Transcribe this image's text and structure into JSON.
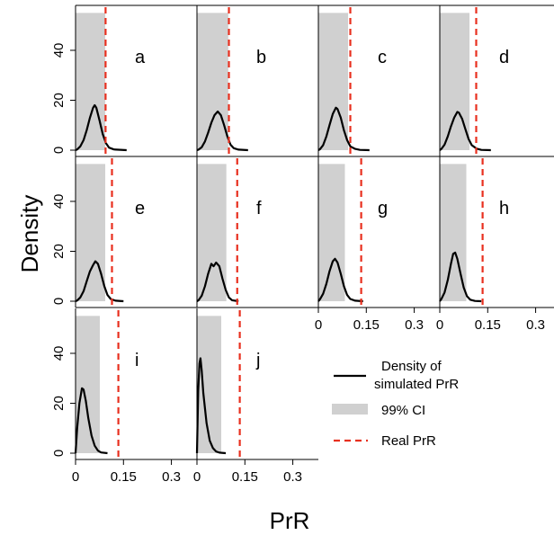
{
  "chart_data": {
    "type": "area",
    "layout": "small multiples, 4 columns",
    "ylabel": "Density",
    "xlabel": "PrR",
    "xlim": [
      0,
      0.38
    ],
    "ylim": [
      0,
      58
    ],
    "xticks": [
      0,
      0.15,
      0.3
    ],
    "xtick_labels": [
      "0",
      "0.15",
      "0.3"
    ],
    "yticks": [
      0,
      20,
      40
    ],
    "ytick_labels": [
      "0",
      "20",
      "40"
    ],
    "colors": {
      "density": "#000000",
      "ci": "#d0d0d0",
      "real": "#e8301f"
    },
    "legend": {
      "placement": "bottom-right",
      "items": [
        {
          "label_lines": [
            "Density of",
            "simulated PrR"
          ],
          "kind": "line",
          "color": "#000000"
        },
        {
          "label_lines": [
            "99% CI"
          ],
          "kind": "band",
          "color": "#d0d0d0"
        },
        {
          "label_lines": [
            "Real PrR"
          ],
          "kind": "dashed",
          "color": "#e8301f"
        }
      ]
    },
    "panels": [
      {
        "label": "a",
        "ci": [
          0,
          0.093
        ],
        "real": 0.094,
        "density": [
          [
            0.0,
            0.0
          ],
          [
            0.005,
            0.3
          ],
          [
            0.015,
            1.5
          ],
          [
            0.025,
            4.0
          ],
          [
            0.035,
            8.0
          ],
          [
            0.045,
            13.0
          ],
          [
            0.055,
            17.0
          ],
          [
            0.06,
            18.0
          ],
          [
            0.065,
            17.0
          ],
          [
            0.075,
            12.0
          ],
          [
            0.085,
            6.5
          ],
          [
            0.095,
            2.8
          ],
          [
            0.105,
            1.0
          ],
          [
            0.12,
            0.3
          ],
          [
            0.16,
            0.0
          ]
        ]
      },
      {
        "label": "b",
        "ci": [
          0,
          0.098
        ],
        "real": 0.1,
        "density": [
          [
            0.0,
            0.0
          ],
          [
            0.005,
            0.2
          ],
          [
            0.015,
            1.2
          ],
          [
            0.025,
            3.5
          ],
          [
            0.035,
            7.0
          ],
          [
            0.045,
            11.0
          ],
          [
            0.055,
            14.0
          ],
          [
            0.065,
            15.5
          ],
          [
            0.075,
            14.0
          ],
          [
            0.085,
            10.0
          ],
          [
            0.095,
            5.5
          ],
          [
            0.105,
            2.2
          ],
          [
            0.115,
            0.8
          ],
          [
            0.13,
            0.2
          ],
          [
            0.16,
            0.0
          ]
        ]
      },
      {
        "label": "c",
        "ci": [
          0,
          0.093
        ],
        "real": 0.1,
        "density": [
          [
            0.0,
            0.0
          ],
          [
            0.005,
            0.4
          ],
          [
            0.015,
            2.0
          ],
          [
            0.025,
            5.5
          ],
          [
            0.035,
            10.0
          ],
          [
            0.045,
            14.5
          ],
          [
            0.055,
            17.0
          ],
          [
            0.06,
            16.5
          ],
          [
            0.07,
            13.0
          ],
          [
            0.08,
            8.0
          ],
          [
            0.09,
            4.0
          ],
          [
            0.1,
            1.5
          ],
          [
            0.115,
            0.5
          ],
          [
            0.13,
            0.1
          ],
          [
            0.16,
            0.0
          ]
        ]
      },
      {
        "label": "d",
        "ci": [
          0,
          0.093
        ],
        "real": 0.114,
        "density": [
          [
            0.0,
            0.0
          ],
          [
            0.005,
            0.5
          ],
          [
            0.015,
            2.2
          ],
          [
            0.025,
            5.5
          ],
          [
            0.035,
            9.5
          ],
          [
            0.045,
            13.0
          ],
          [
            0.055,
            15.3
          ],
          [
            0.06,
            15.0
          ],
          [
            0.07,
            12.5
          ],
          [
            0.08,
            8.5
          ],
          [
            0.09,
            4.5
          ],
          [
            0.1,
            2.0
          ],
          [
            0.115,
            0.6
          ],
          [
            0.13,
            0.1
          ],
          [
            0.16,
            0.0
          ]
        ]
      },
      {
        "label": "e",
        "ci": [
          0,
          0.093
        ],
        "real": 0.114,
        "density": [
          [
            0.0,
            0.0
          ],
          [
            0.005,
            0.3
          ],
          [
            0.015,
            1.5
          ],
          [
            0.025,
            4.0
          ],
          [
            0.035,
            8.0
          ],
          [
            0.045,
            12.0
          ],
          [
            0.055,
            14.5
          ],
          [
            0.062,
            16.0
          ],
          [
            0.07,
            15.0
          ],
          [
            0.08,
            11.0
          ],
          [
            0.09,
            6.0
          ],
          [
            0.1,
            2.5
          ],
          [
            0.11,
            0.9
          ],
          [
            0.125,
            0.2
          ],
          [
            0.15,
            0.0
          ]
        ]
      },
      {
        "label": "f",
        "ci": [
          0,
          0.092
        ],
        "real": 0.126,
        "density": [
          [
            0.0,
            0.0
          ],
          [
            0.005,
            0.4
          ],
          [
            0.015,
            2.2
          ],
          [
            0.025,
            6.0
          ],
          [
            0.035,
            11.0
          ],
          [
            0.045,
            15.0
          ],
          [
            0.052,
            14.0
          ],
          [
            0.06,
            15.5
          ],
          [
            0.07,
            14.0
          ],
          [
            0.08,
            9.0
          ],
          [
            0.09,
            4.5
          ],
          [
            0.1,
            1.5
          ],
          [
            0.11,
            0.4
          ],
          [
            0.13,
            0.0
          ]
        ]
      },
      {
        "label": "g",
        "ci": [
          0,
          0.083
        ],
        "real": 0.134,
        "density": [
          [
            0.0,
            0.0
          ],
          [
            0.005,
            0.8
          ],
          [
            0.015,
            3.0
          ],
          [
            0.025,
            7.0
          ],
          [
            0.035,
            12.0
          ],
          [
            0.045,
            16.0
          ],
          [
            0.052,
            17.0
          ],
          [
            0.06,
            15.5
          ],
          [
            0.07,
            11.0
          ],
          [
            0.08,
            6.0
          ],
          [
            0.09,
            2.5
          ],
          [
            0.1,
            0.9
          ],
          [
            0.115,
            0.2
          ],
          [
            0.14,
            0.0
          ]
        ]
      },
      {
        "label": "h",
        "ci": [
          0,
          0.083
        ],
        "real": 0.134,
        "density": [
          [
            0.0,
            0.0
          ],
          [
            0.005,
            0.9
          ],
          [
            0.015,
            3.5
          ],
          [
            0.025,
            8.5
          ],
          [
            0.035,
            15.0
          ],
          [
            0.042,
            19.0
          ],
          [
            0.048,
            19.5
          ],
          [
            0.055,
            17.0
          ],
          [
            0.065,
            11.0
          ],
          [
            0.075,
            5.5
          ],
          [
            0.085,
            2.0
          ],
          [
            0.095,
            0.6
          ],
          [
            0.11,
            0.1
          ],
          [
            0.13,
            0.0
          ]
        ]
      },
      {
        "label": "i",
        "ci": [
          0,
          0.076
        ],
        "real": 0.134,
        "density": [
          [
            0.0,
            0.0
          ],
          [
            0.005,
            10.0
          ],
          [
            0.012,
            20.0
          ],
          [
            0.02,
            26.0
          ],
          [
            0.025,
            25.5
          ],
          [
            0.032,
            21.0
          ],
          [
            0.04,
            14.0
          ],
          [
            0.05,
            7.0
          ],
          [
            0.06,
            3.0
          ],
          [
            0.07,
            1.0
          ],
          [
            0.08,
            0.3
          ],
          [
            0.1,
            0.0
          ]
        ]
      },
      {
        "label": "j",
        "ci": [
          0,
          0.076
        ],
        "real": 0.134,
        "density": [
          [
            0.0,
            0.0
          ],
          [
            0.004,
            25.0
          ],
          [
            0.008,
            36.0
          ],
          [
            0.011,
            38.0
          ],
          [
            0.015,
            33.0
          ],
          [
            0.02,
            24.0
          ],
          [
            0.03,
            12.0
          ],
          [
            0.04,
            5.0
          ],
          [
            0.05,
            2.0
          ],
          [
            0.06,
            0.7
          ],
          [
            0.07,
            0.2
          ],
          [
            0.09,
            0.0
          ]
        ]
      }
    ]
  }
}
